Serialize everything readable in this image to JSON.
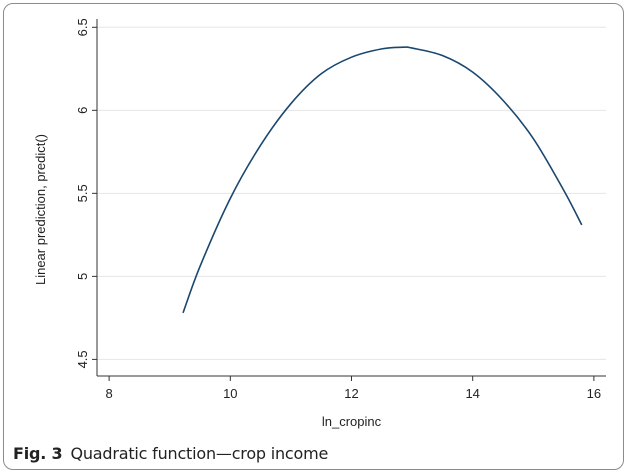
{
  "chart_data": {
    "type": "line",
    "xlabel": "ln_cropinc",
    "ylabel": "Linear prediction, predict()",
    "xlim": [
      7.8,
      16.2
    ],
    "ylim": [
      4.4,
      6.55
    ],
    "xticks": [
      8,
      10,
      12,
      14,
      16
    ],
    "yticks": [
      4.5,
      5,
      5.5,
      6,
      6.5
    ],
    "xtick_labels": [
      "8",
      "10",
      "12",
      "14",
      "16"
    ],
    "ytick_labels": [
      "4.5",
      "5",
      "5.5",
      "6",
      "6.5"
    ],
    "grid": "horizontal",
    "line_color": "#1a476f",
    "series": [
      {
        "x": [
          9.22,
          9.5,
          10.0,
          10.5,
          11.0,
          11.5,
          12.0,
          12.5,
          12.85,
          13.0,
          13.5,
          14.0,
          14.5,
          15.0,
          15.5,
          15.8
        ],
        "values": [
          4.78,
          5.06,
          5.47,
          5.79,
          6.04,
          6.22,
          6.32,
          6.37,
          6.38,
          6.375,
          6.33,
          6.23,
          6.06,
          5.83,
          5.52,
          5.31
        ]
      }
    ]
  },
  "caption": {
    "label": "Fig. 3",
    "text": "Quadratic function—crop income"
  }
}
